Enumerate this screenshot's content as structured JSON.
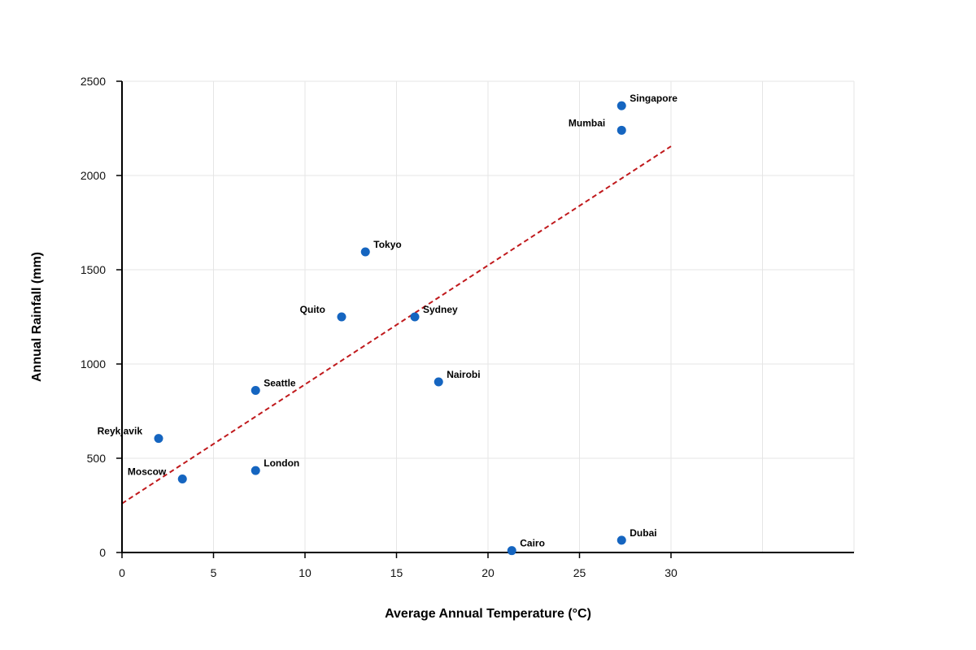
{
  "chart_data": {
    "type": "scatter",
    "title": "",
    "xlabel": "Average Annual Temperature (°C)",
    "ylabel": "Annual Rainfall (mm)",
    "xlim": [
      0,
      40
    ],
    "ylim": [
      0,
      2500
    ],
    "x_ticks": [
      0,
      5,
      10,
      15,
      20,
      25,
      30
    ],
    "y_ticks": [
      0,
      500,
      1000,
      1500,
      2000,
      2500
    ],
    "x_gridlines": [
      0,
      5,
      10,
      15,
      20,
      25,
      30,
      35,
      40
    ],
    "grid": true,
    "point_color": "#1565c0",
    "trendline": {
      "style": "dashed",
      "color": "#c0191c",
      "x": [
        0,
        30
      ],
      "y": [
        260,
        2155
      ]
    },
    "points": [
      {
        "label": "Singapore",
        "x": 27.3,
        "y": 2370,
        "label_side": "right"
      },
      {
        "label": "Mumbai",
        "x": 27.3,
        "y": 2240,
        "label_side": "left"
      },
      {
        "label": "Tokyo",
        "x": 13.3,
        "y": 1595,
        "label_side": "right"
      },
      {
        "label": "Quito",
        "x": 12.0,
        "y": 1250,
        "label_side": "left"
      },
      {
        "label": "Sydney",
        "x": 16.0,
        "y": 1250,
        "label_side": "right"
      },
      {
        "label": "Nairobi",
        "x": 17.3,
        "y": 905,
        "label_side": "right"
      },
      {
        "label": "Seattle",
        "x": 7.3,
        "y": 860,
        "label_side": "right"
      },
      {
        "label": "Reykjavik",
        "x": 2.0,
        "y": 605,
        "label_side": "left"
      },
      {
        "label": "Moscow",
        "x": 3.3,
        "y": 390,
        "label_side": "left"
      },
      {
        "label": "London",
        "x": 7.3,
        "y": 435,
        "label_side": "right"
      },
      {
        "label": "Cairo",
        "x": 21.3,
        "y": 10,
        "label_side": "right"
      },
      {
        "label": "Dubai",
        "x": 27.3,
        "y": 65,
        "label_side": "right"
      }
    ]
  }
}
